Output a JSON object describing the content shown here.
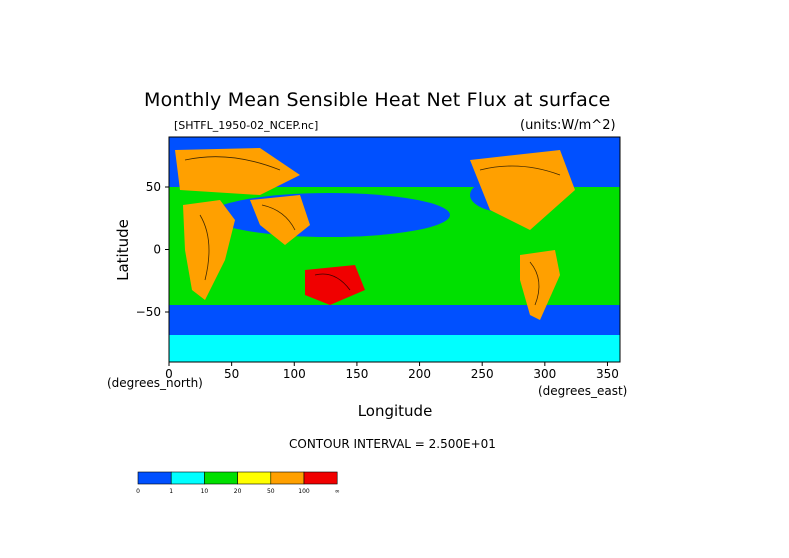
{
  "chart_data": {
    "type": "heatmap",
    "title": "Monthly Mean Sensible Heat Net Flux at surface",
    "file_label": "[SHTFL_1950-02_NCEP.nc]",
    "units_label": "(units:W/m^2)",
    "xlabel": "Longitude",
    "ylabel": "Latitude",
    "x_unit_label": "(degrees_east)",
    "y_unit_label": "(degrees_north)",
    "xlim": [
      0,
      360
    ],
    "ylim": [
      -90,
      90
    ],
    "x_ticks": [
      "0",
      "50",
      "100",
      "150",
      "200",
      "250",
      "300",
      "350"
    ],
    "y_ticks": [
      "50",
      "0",
      "−50"
    ],
    "contour_interval": "CONTOUR INTERVAL = 2.500E+01",
    "colorbar": {
      "colors": [
        "#0050ff",
        "#00ffff",
        "#00e000",
        "#ffff00",
        "#ffa000",
        "#f00000"
      ],
      "labels": [
        "0",
        "1",
        "10",
        "20",
        "50",
        "100",
        "∞"
      ]
    },
    "regions": [
      {
        "name": "background",
        "class": 2
      },
      {
        "name": "north-polar",
        "class": 0
      },
      {
        "name": "southern-ocean",
        "class": 0
      },
      {
        "name": "antarctica",
        "class": 1
      },
      {
        "name": "north-atlantic",
        "class": 0
      },
      {
        "name": "north-pacific",
        "class": 0
      },
      {
        "name": "africa",
        "class": 4
      },
      {
        "name": "india",
        "class": 4
      },
      {
        "name": "australia",
        "class": 5
      },
      {
        "name": "south-america",
        "class": 4
      },
      {
        "name": "north-america",
        "class": 4
      },
      {
        "name": "europe",
        "class": 4
      },
      {
        "name": "tropical-band",
        "class": 2
      }
    ]
  }
}
